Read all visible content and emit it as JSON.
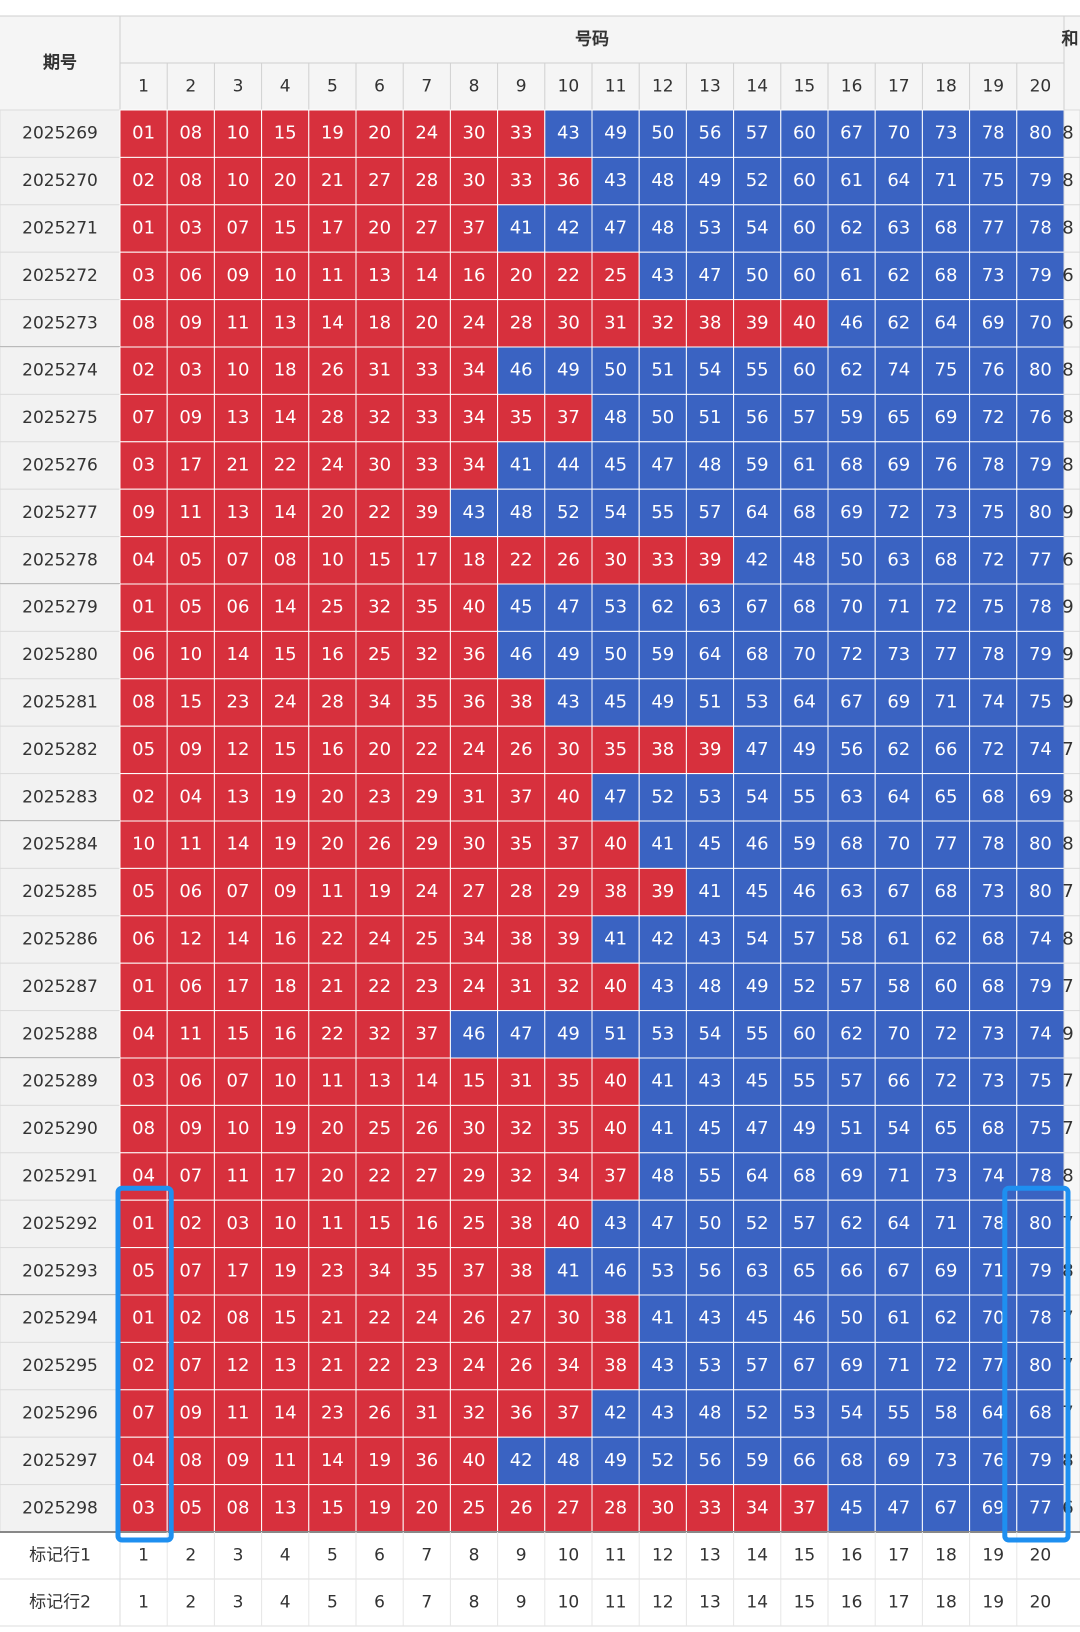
{
  "table": {
    "header": {
      "period": "期号",
      "numbers": "号码",
      "sum": "和",
      "columns": [
        1,
        2,
        3,
        4,
        5,
        6,
        7,
        8,
        9,
        10,
        11,
        12,
        13,
        14,
        15,
        16,
        17,
        18,
        19,
        20
      ]
    },
    "rows": [
      {
        "period": "2025269",
        "numbers": [
          "01",
          "08",
          "10",
          "15",
          "19",
          "20",
          "24",
          "30",
          "33",
          "43",
          "49",
          "50",
          "56",
          "57",
          "60",
          "67",
          "70",
          "73",
          "78",
          "80"
        ],
        "sum": "8"
      },
      {
        "period": "2025270",
        "numbers": [
          "02",
          "08",
          "10",
          "20",
          "21",
          "27",
          "28",
          "30",
          "33",
          "36",
          "43",
          "48",
          "49",
          "52",
          "60",
          "61",
          "64",
          "71",
          "75",
          "79"
        ],
        "sum": "8"
      },
      {
        "period": "2025271",
        "numbers": [
          "01",
          "03",
          "07",
          "15",
          "17",
          "20",
          "27",
          "37",
          "41",
          "42",
          "47",
          "48",
          "53",
          "54",
          "60",
          "62",
          "63",
          "68",
          "77",
          "78"
        ],
        "sum": "8"
      },
      {
        "period": "2025272",
        "numbers": [
          "03",
          "06",
          "09",
          "10",
          "11",
          "13",
          "14",
          "16",
          "20",
          "22",
          "25",
          "43",
          "47",
          "50",
          "60",
          "61",
          "62",
          "68",
          "73",
          "79"
        ],
        "sum": "6"
      },
      {
        "period": "2025273",
        "numbers": [
          "08",
          "09",
          "11",
          "13",
          "14",
          "18",
          "20",
          "24",
          "28",
          "30",
          "31",
          "32",
          "38",
          "39",
          "40",
          "46",
          "62",
          "64",
          "69",
          "70"
        ],
        "sum": "6"
      },
      {
        "period": "2025274",
        "numbers": [
          "02",
          "03",
          "10",
          "18",
          "26",
          "31",
          "33",
          "34",
          "46",
          "49",
          "50",
          "51",
          "54",
          "55",
          "60",
          "62",
          "74",
          "75",
          "76",
          "80"
        ],
        "sum": "8"
      },
      {
        "period": "2025275",
        "numbers": [
          "07",
          "09",
          "13",
          "14",
          "28",
          "32",
          "33",
          "34",
          "35",
          "37",
          "48",
          "50",
          "51",
          "56",
          "57",
          "59",
          "65",
          "69",
          "72",
          "76"
        ],
        "sum": "8"
      },
      {
        "period": "2025276",
        "numbers": [
          "03",
          "17",
          "21",
          "22",
          "24",
          "30",
          "33",
          "34",
          "41",
          "44",
          "45",
          "47",
          "48",
          "59",
          "61",
          "68",
          "69",
          "76",
          "78",
          "79"
        ],
        "sum": "8"
      },
      {
        "period": "2025277",
        "numbers": [
          "09",
          "11",
          "13",
          "14",
          "20",
          "22",
          "39",
          "43",
          "48",
          "52",
          "54",
          "55",
          "57",
          "64",
          "68",
          "69",
          "72",
          "73",
          "75",
          "80"
        ],
        "sum": "9"
      },
      {
        "period": "2025278",
        "numbers": [
          "04",
          "05",
          "07",
          "08",
          "10",
          "15",
          "17",
          "18",
          "22",
          "26",
          "30",
          "33",
          "39",
          "42",
          "48",
          "50",
          "63",
          "68",
          "72",
          "77"
        ],
        "sum": "6"
      },
      {
        "period": "2025279",
        "numbers": [
          "01",
          "05",
          "06",
          "14",
          "25",
          "32",
          "35",
          "40",
          "45",
          "47",
          "53",
          "62",
          "63",
          "67",
          "68",
          "70",
          "71",
          "72",
          "75",
          "78"
        ],
        "sum": "9"
      },
      {
        "period": "2025280",
        "numbers": [
          "06",
          "10",
          "14",
          "15",
          "16",
          "25",
          "32",
          "36",
          "46",
          "49",
          "50",
          "59",
          "64",
          "68",
          "70",
          "72",
          "73",
          "77",
          "78",
          "79"
        ],
        "sum": "9"
      },
      {
        "period": "2025281",
        "numbers": [
          "08",
          "15",
          "23",
          "24",
          "28",
          "34",
          "35",
          "36",
          "38",
          "43",
          "45",
          "49",
          "51",
          "53",
          "64",
          "67",
          "69",
          "71",
          "74",
          "75"
        ],
        "sum": "9"
      },
      {
        "period": "2025282",
        "numbers": [
          "05",
          "09",
          "12",
          "15",
          "16",
          "20",
          "22",
          "24",
          "26",
          "30",
          "35",
          "38",
          "39",
          "47",
          "49",
          "56",
          "62",
          "66",
          "72",
          "74"
        ],
        "sum": "7"
      },
      {
        "period": "2025283",
        "numbers": [
          "02",
          "04",
          "13",
          "19",
          "20",
          "23",
          "29",
          "31",
          "37",
          "40",
          "47",
          "52",
          "53",
          "54",
          "55",
          "63",
          "64",
          "65",
          "68",
          "69"
        ],
        "sum": "8"
      },
      {
        "period": "2025284",
        "numbers": [
          "10",
          "11",
          "14",
          "19",
          "20",
          "26",
          "29",
          "30",
          "35",
          "37",
          "40",
          "41",
          "45",
          "46",
          "59",
          "68",
          "70",
          "77",
          "78",
          "80"
        ],
        "sum": "8"
      },
      {
        "period": "2025285",
        "numbers": [
          "05",
          "06",
          "07",
          "09",
          "11",
          "19",
          "24",
          "27",
          "28",
          "29",
          "38",
          "39",
          "41",
          "45",
          "46",
          "63",
          "67",
          "68",
          "73",
          "80"
        ],
        "sum": "7"
      },
      {
        "period": "2025286",
        "numbers": [
          "06",
          "12",
          "14",
          "16",
          "22",
          "24",
          "25",
          "34",
          "38",
          "39",
          "41",
          "42",
          "43",
          "54",
          "57",
          "58",
          "61",
          "62",
          "68",
          "74"
        ],
        "sum": "8"
      },
      {
        "period": "2025287",
        "numbers": [
          "01",
          "06",
          "17",
          "18",
          "21",
          "22",
          "23",
          "24",
          "31",
          "32",
          "40",
          "43",
          "48",
          "49",
          "52",
          "57",
          "58",
          "60",
          "68",
          "79"
        ],
        "sum": "7"
      },
      {
        "period": "2025288",
        "numbers": [
          "04",
          "11",
          "15",
          "16",
          "22",
          "32",
          "37",
          "46",
          "47",
          "49",
          "51",
          "53",
          "54",
          "55",
          "60",
          "62",
          "70",
          "72",
          "73",
          "74"
        ],
        "sum": "9"
      },
      {
        "period": "2025289",
        "numbers": [
          "03",
          "06",
          "07",
          "10",
          "11",
          "13",
          "14",
          "15",
          "31",
          "35",
          "40",
          "41",
          "43",
          "45",
          "55",
          "57",
          "66",
          "72",
          "73",
          "75"
        ],
        "sum": "7"
      },
      {
        "period": "2025290",
        "numbers": [
          "08",
          "09",
          "10",
          "19",
          "20",
          "25",
          "26",
          "30",
          "32",
          "35",
          "40",
          "41",
          "45",
          "47",
          "49",
          "51",
          "54",
          "65",
          "68",
          "75"
        ],
        "sum": "7"
      },
      {
        "period": "2025291",
        "numbers": [
          "04",
          "07",
          "11",
          "17",
          "20",
          "22",
          "27",
          "29",
          "32",
          "34",
          "37",
          "48",
          "55",
          "64",
          "68",
          "69",
          "71",
          "73",
          "74",
          "78"
        ],
        "sum": "8"
      },
      {
        "period": "2025292",
        "numbers": [
          "01",
          "02",
          "03",
          "10",
          "11",
          "15",
          "16",
          "25",
          "38",
          "40",
          "43",
          "47",
          "50",
          "52",
          "57",
          "62",
          "64",
          "71",
          "78",
          "80"
        ],
        "sum": "7"
      },
      {
        "period": "2025293",
        "numbers": [
          "05",
          "07",
          "17",
          "19",
          "23",
          "34",
          "35",
          "37",
          "38",
          "41",
          "46",
          "53",
          "56",
          "63",
          "65",
          "66",
          "67",
          "69",
          "71",
          "79"
        ],
        "sum": "8"
      },
      {
        "period": "2025294",
        "numbers": [
          "01",
          "02",
          "08",
          "15",
          "21",
          "22",
          "24",
          "26",
          "27",
          "30",
          "38",
          "41",
          "43",
          "45",
          "46",
          "50",
          "61",
          "62",
          "70",
          "78"
        ],
        "sum": "7"
      },
      {
        "period": "2025295",
        "numbers": [
          "02",
          "07",
          "12",
          "13",
          "21",
          "22",
          "23",
          "24",
          "26",
          "34",
          "38",
          "43",
          "53",
          "57",
          "67",
          "69",
          "71",
          "72",
          "77",
          "80"
        ],
        "sum": "7"
      },
      {
        "period": "2025296",
        "numbers": [
          "07",
          "09",
          "11",
          "14",
          "23",
          "26",
          "31",
          "32",
          "36",
          "37",
          "42",
          "43",
          "48",
          "52",
          "53",
          "54",
          "55",
          "58",
          "64",
          "68"
        ],
        "sum": "7"
      },
      {
        "period": "2025297",
        "numbers": [
          "04",
          "08",
          "09",
          "11",
          "14",
          "19",
          "36",
          "40",
          "42",
          "48",
          "49",
          "52",
          "56",
          "59",
          "66",
          "68",
          "69",
          "73",
          "76",
          "79"
        ],
        "sum": "8"
      },
      {
        "period": "2025298",
        "numbers": [
          "03",
          "05",
          "08",
          "13",
          "15",
          "19",
          "20",
          "25",
          "26",
          "27",
          "28",
          "30",
          "33",
          "34",
          "37",
          "45",
          "47",
          "67",
          "69",
          "77"
        ],
        "sum": "6"
      }
    ],
    "marker_rows": [
      {
        "label": "标记行1",
        "values": [
          1,
          2,
          3,
          4,
          5,
          6,
          7,
          8,
          9,
          10,
          11,
          12,
          13,
          14,
          15,
          16,
          17,
          18,
          19,
          20
        ]
      },
      {
        "label": "标记行2",
        "values": [
          1,
          2,
          3,
          4,
          5,
          6,
          7,
          8,
          9,
          10,
          11,
          12,
          13,
          14,
          15,
          16,
          17,
          18,
          19,
          20
        ]
      }
    ]
  },
  "colors": {
    "low": "#d7303d",
    "high": "#3a63c2",
    "low_max": 40
  }
}
